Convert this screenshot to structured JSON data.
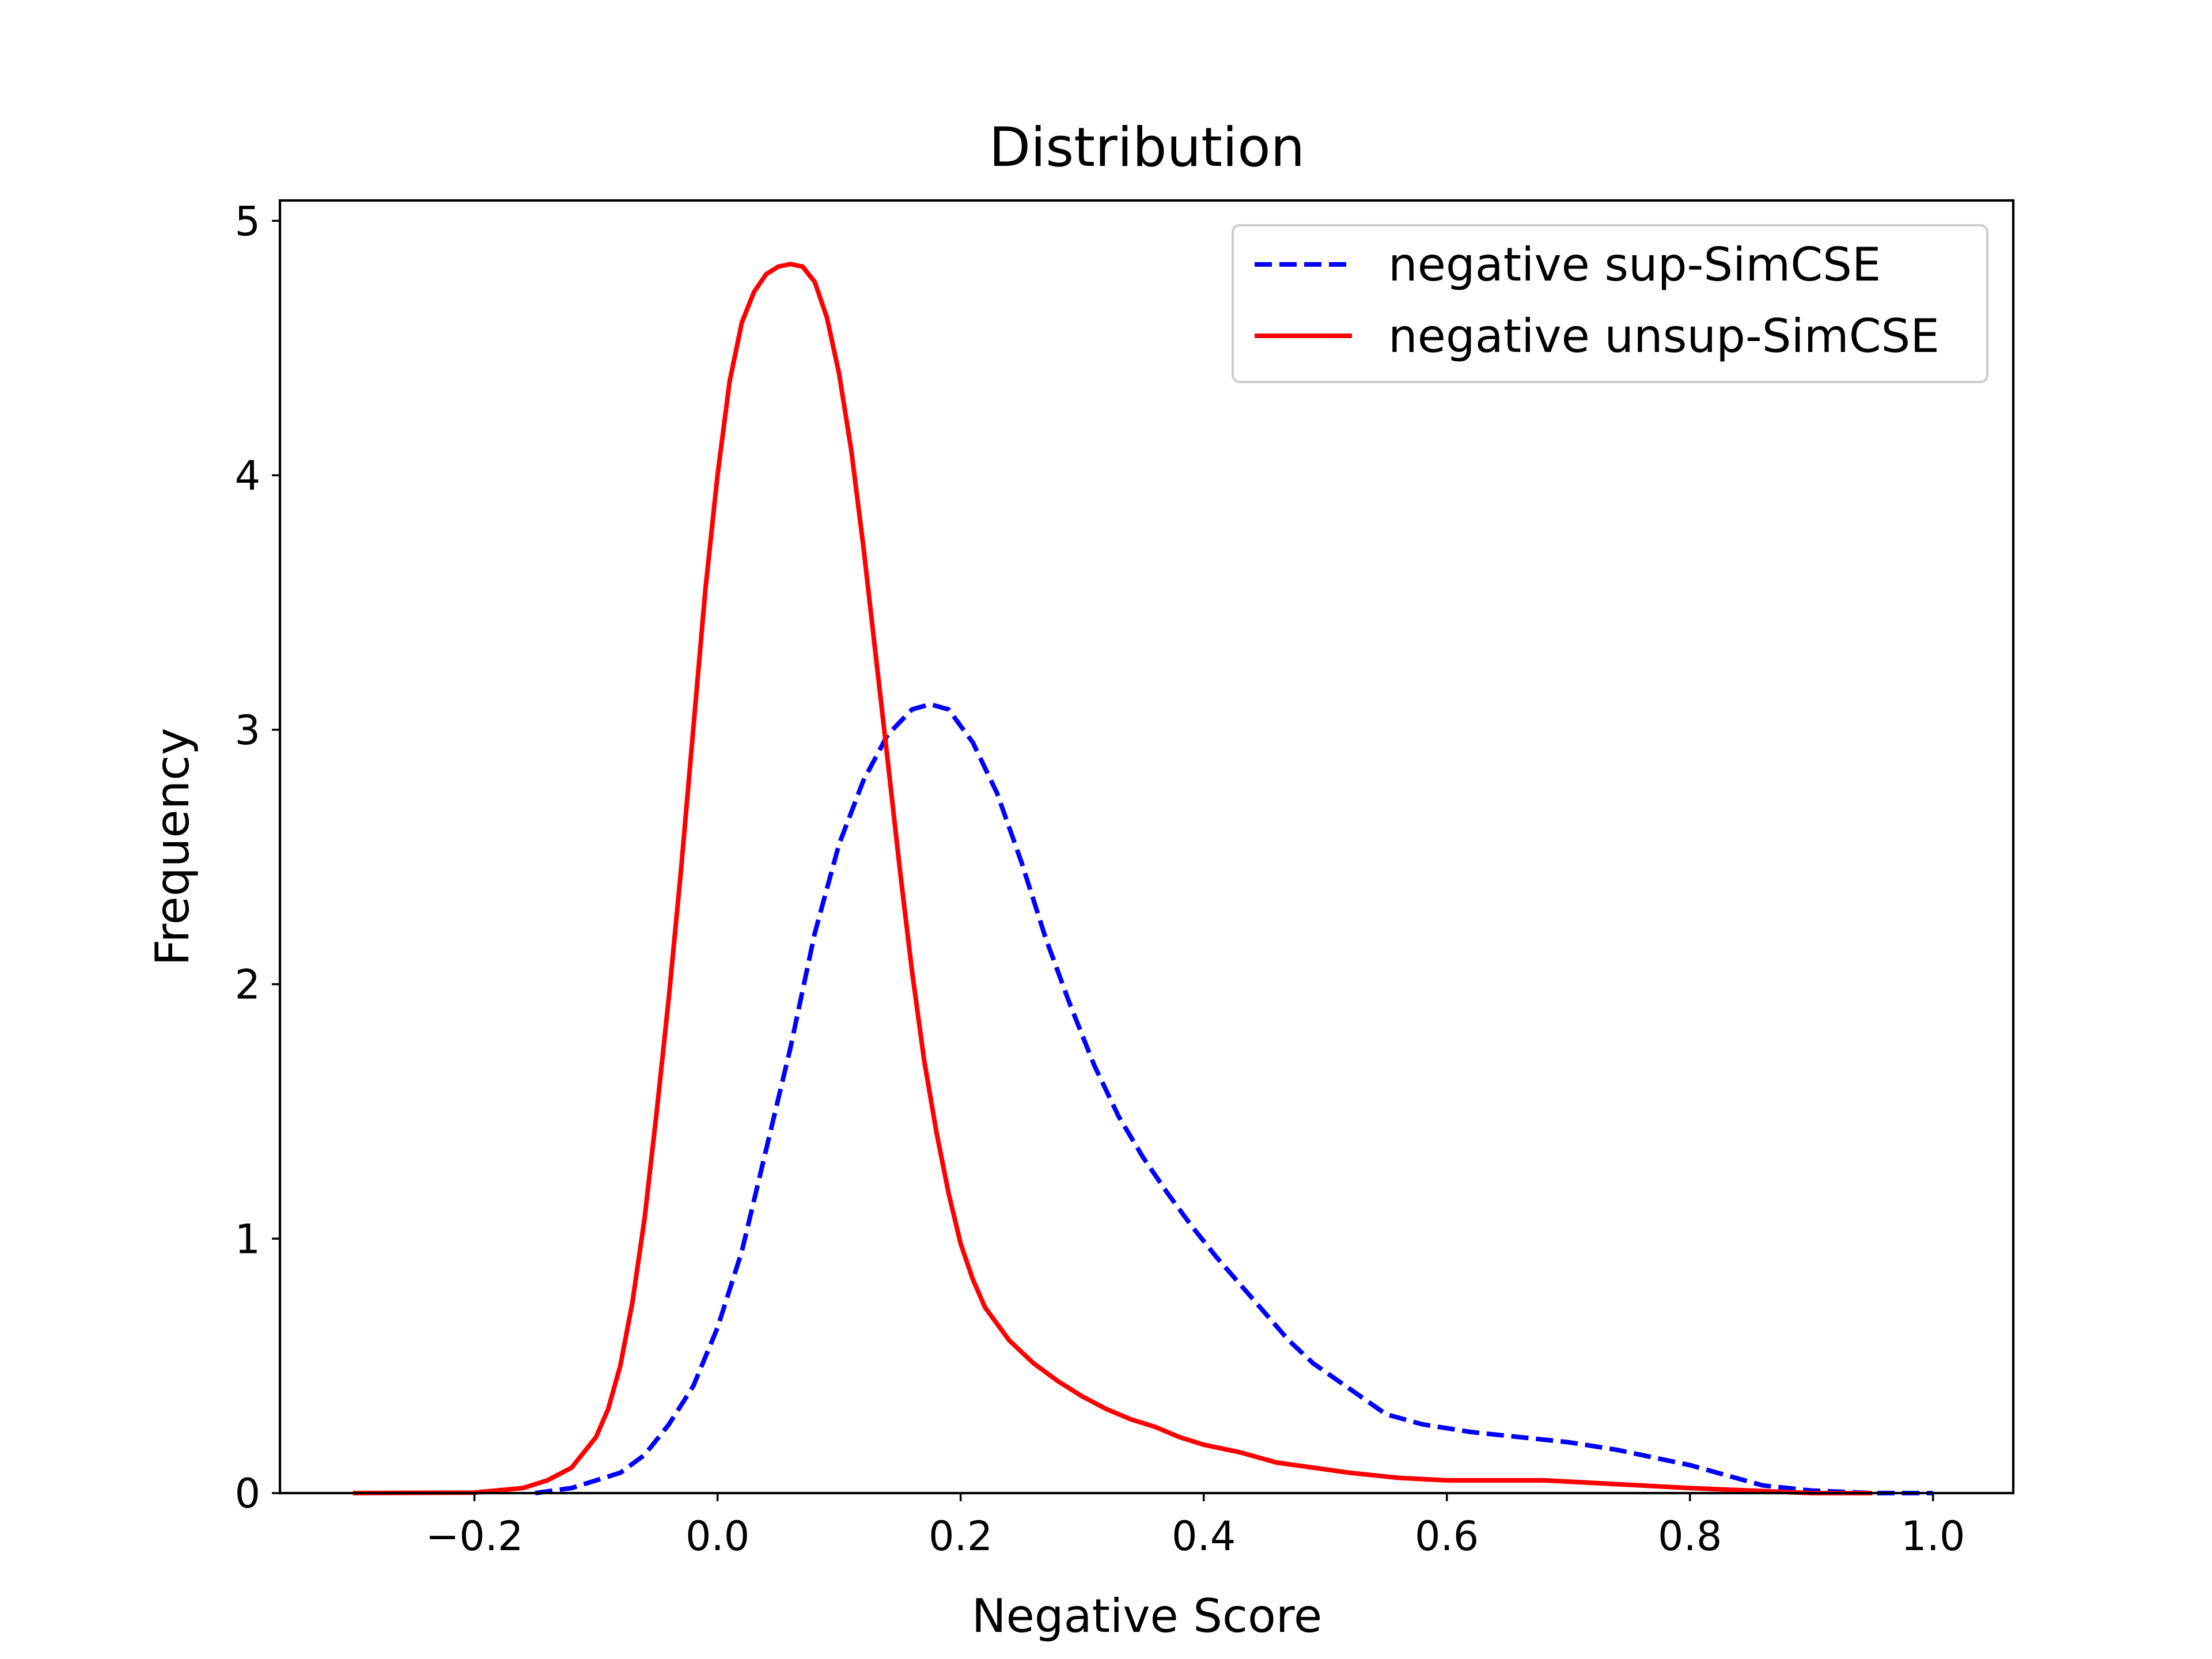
{
  "chart_data": {
    "type": "line",
    "title": "Distribution",
    "xlabel": "Negative Score",
    "ylabel": "Frequency",
    "xlim": [
      -0.36,
      1.066
    ],
    "ylim": [
      0,
      5.08
    ],
    "xticks": [
      -0.2,
      0.0,
      0.2,
      0.4,
      0.6,
      0.8,
      1.0
    ],
    "xtick_labels": [
      "−0.2",
      "0.0",
      "0.2",
      "0.4",
      "0.6",
      "0.8",
      "1.0"
    ],
    "yticks": [
      0,
      1,
      2,
      3,
      4,
      5
    ],
    "ytick_labels": [
      "0",
      "1",
      "2",
      "3",
      "4",
      "5"
    ],
    "grid": false,
    "legend_position": "top-right",
    "series": [
      {
        "name": "negative sup-SimCSE",
        "color": "#0000ff",
        "style": "dashed",
        "points": [
          [
            -0.15,
            0.0
          ],
          [
            -0.12,
            0.02
          ],
          [
            -0.08,
            0.08
          ],
          [
            -0.06,
            0.15
          ],
          [
            -0.04,
            0.27
          ],
          [
            -0.02,
            0.42
          ],
          [
            0.0,
            0.65
          ],
          [
            0.02,
            0.95
          ],
          [
            0.04,
            1.35
          ],
          [
            0.06,
            1.75
          ],
          [
            0.08,
            2.2
          ],
          [
            0.1,
            2.55
          ],
          [
            0.12,
            2.8
          ],
          [
            0.14,
            2.98
          ],
          [
            0.16,
            3.08
          ],
          [
            0.175,
            3.1
          ],
          [
            0.19,
            3.08
          ],
          [
            0.21,
            2.95
          ],
          [
            0.23,
            2.75
          ],
          [
            0.25,
            2.48
          ],
          [
            0.27,
            2.18
          ],
          [
            0.29,
            1.92
          ],
          [
            0.31,
            1.68
          ],
          [
            0.33,
            1.48
          ],
          [
            0.35,
            1.32
          ],
          [
            0.37,
            1.18
          ],
          [
            0.39,
            1.05
          ],
          [
            0.41,
            0.93
          ],
          [
            0.43,
            0.82
          ],
          [
            0.45,
            0.71
          ],
          [
            0.47,
            0.6
          ],
          [
            0.49,
            0.51
          ],
          [
            0.52,
            0.41
          ],
          [
            0.55,
            0.31
          ],
          [
            0.58,
            0.27
          ],
          [
            0.62,
            0.24
          ],
          [
            0.66,
            0.22
          ],
          [
            0.7,
            0.2
          ],
          [
            0.74,
            0.17
          ],
          [
            0.78,
            0.13
          ],
          [
            0.8,
            0.11
          ],
          [
            0.83,
            0.07
          ],
          [
            0.86,
            0.03
          ],
          [
            0.9,
            0.01
          ],
          [
            0.95,
            0.0
          ],
          [
            1.0,
            0.0
          ]
        ]
      },
      {
        "name": "negative unsup-SimCSE",
        "color": "#ff0000",
        "style": "solid",
        "points": [
          [
            -0.3,
            0.0
          ],
          [
            -0.2,
            0.002
          ],
          [
            -0.16,
            0.02
          ],
          [
            -0.14,
            0.05
          ],
          [
            -0.12,
            0.1
          ],
          [
            -0.1,
            0.22
          ],
          [
            -0.09,
            0.33
          ],
          [
            -0.08,
            0.5
          ],
          [
            -0.07,
            0.75
          ],
          [
            -0.06,
            1.08
          ],
          [
            -0.05,
            1.5
          ],
          [
            -0.04,
            1.95
          ],
          [
            -0.03,
            2.45
          ],
          [
            -0.02,
            3.0
          ],
          [
            -0.01,
            3.55
          ],
          [
            0.0,
            4.0
          ],
          [
            0.01,
            4.37
          ],
          [
            0.02,
            4.6
          ],
          [
            0.03,
            4.72
          ],
          [
            0.04,
            4.79
          ],
          [
            0.05,
            4.82
          ],
          [
            0.06,
            4.83
          ],
          [
            0.07,
            4.82
          ],
          [
            0.08,
            4.76
          ],
          [
            0.09,
            4.62
          ],
          [
            0.1,
            4.4
          ],
          [
            0.11,
            4.1
          ],
          [
            0.12,
            3.72
          ],
          [
            0.13,
            3.3
          ],
          [
            0.14,
            2.88
          ],
          [
            0.15,
            2.45
          ],
          [
            0.16,
            2.05
          ],
          [
            0.17,
            1.7
          ],
          [
            0.18,
            1.42
          ],
          [
            0.19,
            1.18
          ],
          [
            0.2,
            0.98
          ],
          [
            0.21,
            0.84
          ],
          [
            0.22,
            0.73
          ],
          [
            0.24,
            0.6
          ],
          [
            0.26,
            0.51
          ],
          [
            0.28,
            0.44
          ],
          [
            0.3,
            0.38
          ],
          [
            0.32,
            0.33
          ],
          [
            0.34,
            0.29
          ],
          [
            0.36,
            0.26
          ],
          [
            0.38,
            0.22
          ],
          [
            0.4,
            0.19
          ],
          [
            0.43,
            0.16
          ],
          [
            0.46,
            0.12
          ],
          [
            0.49,
            0.1
          ],
          [
            0.52,
            0.08
          ],
          [
            0.56,
            0.06
          ],
          [
            0.6,
            0.05
          ],
          [
            0.64,
            0.05
          ],
          [
            0.68,
            0.05
          ],
          [
            0.72,
            0.04
          ],
          [
            0.76,
            0.03
          ],
          [
            0.8,
            0.02
          ],
          [
            0.85,
            0.01
          ],
          [
            0.9,
            0.0
          ],
          [
            0.95,
            0.0
          ]
        ]
      }
    ]
  }
}
